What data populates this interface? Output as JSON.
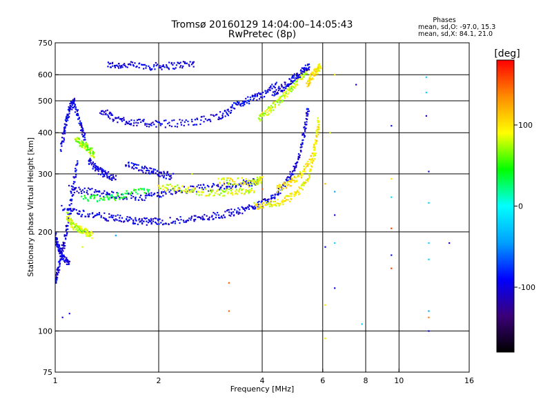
{
  "chart_data": {
    "type": "scatter",
    "title": "Tromsø 20160129 14:04:00–14:05:43",
    "subtitle": "RwPretec (8p)",
    "xlabel": "Frequency [MHz]",
    "ylabel": "Stationary phase Virtual Height [km]",
    "x_scale": "log",
    "y_scale": "log",
    "xlim": [
      1,
      16
    ],
    "ylim": [
      75,
      750
    ],
    "x_ticks": [
      1,
      2,
      4,
      6,
      8,
      10,
      16
    ],
    "y_ticks": [
      75,
      100,
      200,
      300,
      400,
      500,
      600,
      750
    ],
    "x_gridlines": [
      2,
      4,
      6,
      8,
      10
    ],
    "y_gridlines": [
      100,
      200,
      300,
      400,
      500,
      600
    ],
    "grid": true,
    "stats": {
      "header": "Phases",
      "line1": "mean, sd,O: -97.0, 15.3",
      "line2": "mean, sd,X:  84.1, 21.0"
    },
    "colorbar": {
      "unit_label": "[deg]",
      "ticks": [
        100,
        0,
        -100
      ],
      "range": [
        -180,
        180
      ],
      "colors": [
        "#000000",
        "#3b007a",
        "#0000ff",
        "#00a0ff",
        "#00ffff",
        "#00ff00",
        "#ffff00",
        "#ff8c00",
        "#ff0000"
      ]
    },
    "series": [
      {
        "tracks": [
          {
            "f": [
              1.42,
              1.6,
              1.9,
              2.2,
              2.55
            ],
            "h": [
              642,
              642,
              636,
              640,
              650
            ],
            "phase": -100
          },
          {
            "f": [
              1.0,
              1.02,
              1.05,
              1.08,
              1.12,
              1.16
            ],
            "h": [
              140,
              155,
              175,
              205,
              260,
              330
            ],
            "phase": -100
          },
          {
            "f": [
              1.04,
              1.07,
              1.1,
              1.13,
              1.18,
              1.22
            ],
            "h": [
              360,
              420,
              470,
              500,
              430,
              380
            ],
            "phase": -95
          },
          {
            "f": [
              1.15,
              1.2,
              1.25,
              1.3
            ],
            "h": [
              380,
              370,
              360,
              340
            ],
            "phase": 70
          },
          {
            "f": [
              1.25,
              1.32,
              1.4,
              1.5
            ],
            "h": [
              330,
              310,
              300,
              290
            ],
            "phase": -100
          },
          {
            "f": [
              1.08,
              1.12,
              1.17,
              1.22,
              1.28
            ],
            "h": [
              225,
              210,
              205,
              200,
              195
            ],
            "phase": 80
          },
          {
            "f": [
              1.35,
              1.5,
              1.7,
              2.0,
              2.5,
              3.0,
              3.3
            ],
            "h": [
              470,
              440,
              430,
              425,
              430,
              450,
              470
            ],
            "phase": -100
          },
          {
            "f": [
              3.3,
              3.6,
              4.0,
              4.4
            ],
            "h": [
              480,
              500,
              520,
              560
            ],
            "phase": -95
          },
          {
            "f": [
              3.9,
              4.2,
              4.5,
              4.8,
              5.1,
              5.4
            ],
            "h": [
              440,
              470,
              500,
              540,
              580,
              620
            ],
            "phase": 80
          },
          {
            "f": [
              4.3,
              4.6,
              4.9,
              5.2,
              5.5
            ],
            "h": [
              520,
              550,
              580,
              610,
              640
            ],
            "phase": -100
          },
          {
            "f": [
              1.05,
              1.2,
              1.4,
              1.6,
              1.8,
              2.0
            ],
            "h": [
              235,
              228,
              222,
              218,
              215,
              215
            ],
            "phase": -100
          },
          {
            "f": [
              2.0,
              2.4,
              2.8,
              3.2,
              3.6,
              4.0,
              4.4,
              4.8,
              5.1,
              5.3,
              5.45
            ],
            "h": [
              215,
              218,
              222,
              228,
              235,
              245,
              260,
              290,
              330,
              400,
              480
            ],
            "phase": -100
          },
          {
            "f": [
              1.1,
              1.3,
              1.5,
              1.8,
              2.1,
              2.5,
              3.0,
              3.5,
              3.9
            ],
            "h": [
              270,
              265,
              258,
              255,
              262,
              270,
              275,
              280,
              285
            ],
            "phase": -100
          },
          {
            "f": [
              1.2,
              1.4,
              1.6,
              1.9
            ],
            "h": [
              255,
              252,
              260,
              270
            ],
            "phase": 40
          },
          {
            "f": [
              2.0,
              2.3,
              2.6,
              3.0,
              3.4,
              3.8
            ],
            "h": [
              275,
              270,
              265,
              262,
              265,
              270
            ],
            "phase": 85
          },
          {
            "f": [
              1.6,
              1.8,
              2.0,
              2.2
            ],
            "h": [
              320,
              310,
              300,
              295
            ],
            "phase": -100
          },
          {
            "f": [
              3.0,
              3.4,
              3.8,
              4.0
            ],
            "h": [
              285,
              285,
              285,
              288
            ],
            "phase": 90
          },
          {
            "f": [
              3.8,
              4.2,
              4.6,
              5.0,
              5.4,
              5.7,
              5.85
            ],
            "h": [
              240,
              242,
              248,
              260,
              285,
              350,
              450
            ],
            "phase": 95
          },
          {
            "f": [
              4.4,
              4.8,
              5.2,
              5.6,
              5.85
            ],
            "h": [
              270,
              280,
              300,
              340,
              420
            ],
            "phase": 100
          },
          {
            "f": [
              5.4,
              5.6,
              5.8,
              5.9
            ],
            "h": [
              560,
              600,
              620,
              640
            ],
            "phase": 100
          },
          {
            "f": [
              1.0,
              1.02,
              1.05,
              1.1
            ],
            "h": [
              195,
              180,
              168,
              160
            ],
            "phase": -100
          }
        ]
      }
    ],
    "scatter_points": [
      {
        "f": 1.1,
        "h": 113,
        "phase": -100
      },
      {
        "f": 1.05,
        "h": 110,
        "phase": -100
      },
      {
        "f": 1.2,
        "h": 180,
        "phase": 80
      },
      {
        "f": 1.5,
        "h": 195,
        "phase": -40
      },
      {
        "f": 2.5,
        "h": 300,
        "phase": 80
      },
      {
        "f": 3.2,
        "h": 140,
        "phase": 150
      },
      {
        "f": 3.2,
        "h": 115,
        "phase": 150
      },
      {
        "f": 4.0,
        "h": 270,
        "phase": 150
      },
      {
        "f": 6.1,
        "h": 280,
        "phase": 120
      },
      {
        "f": 6.1,
        "h": 180,
        "phase": -100
      },
      {
        "f": 6.1,
        "h": 120,
        "phase": 100
      },
      {
        "f": 6.1,
        "h": 95,
        "phase": 100
      },
      {
        "f": 6.5,
        "h": 265,
        "phase": -40
      },
      {
        "f": 6.5,
        "h": 225,
        "phase": -100
      },
      {
        "f": 6.5,
        "h": 185,
        "phase": -20
      },
      {
        "f": 6.5,
        "h": 135,
        "phase": -100
      },
      {
        "f": 6.5,
        "h": 600,
        "phase": 100
      },
      {
        "f": 6.3,
        "h": 400,
        "phase": 80
      },
      {
        "f": 7.5,
        "h": 560,
        "phase": -100
      },
      {
        "f": 7.8,
        "h": 105,
        "phase": -20
      },
      {
        "f": 9.5,
        "h": 420,
        "phase": -100
      },
      {
        "f": 9.5,
        "h": 290,
        "phase": 100
      },
      {
        "f": 9.5,
        "h": 255,
        "phase": -20
      },
      {
        "f": 9.5,
        "h": 205,
        "phase": 160
      },
      {
        "f": 9.5,
        "h": 170,
        "phase": -100
      },
      {
        "f": 9.5,
        "h": 155,
        "phase": 160
      },
      {
        "f": 12.0,
        "h": 590,
        "phase": -20
      },
      {
        "f": 12.0,
        "h": 530,
        "phase": -20
      },
      {
        "f": 12.0,
        "h": 450,
        "phase": -100
      },
      {
        "f": 12.2,
        "h": 305,
        "phase": -100
      },
      {
        "f": 12.2,
        "h": 245,
        "phase": -20
      },
      {
        "f": 12.2,
        "h": 185,
        "phase": -20
      },
      {
        "f": 12.2,
        "h": 165,
        "phase": -20
      },
      {
        "f": 12.2,
        "h": 115,
        "phase": -40
      },
      {
        "f": 12.2,
        "h": 110,
        "phase": 140
      },
      {
        "f": 12.2,
        "h": 100,
        "phase": -100
      },
      {
        "f": 14.0,
        "h": 185,
        "phase": -100
      }
    ]
  }
}
